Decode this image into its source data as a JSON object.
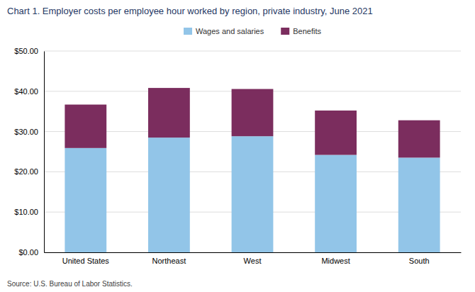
{
  "chart_data": {
    "type": "bar",
    "stacked": true,
    "title": "Chart 1. Employer costs per employee hour worked by region, private industry, June 2021",
    "categories": [
      "United States",
      "Northeast",
      "West",
      "Midwest",
      "South"
    ],
    "series": [
      {
        "name": "Wages and salaries",
        "color": "#92C5E8",
        "values": [
          25.91,
          28.5,
          28.84,
          24.2,
          23.52
        ]
      },
      {
        "name": "Benefits",
        "color": "#7B2D5E",
        "values": [
          10.79,
          12.33,
          11.73,
          11.02,
          9.28
        ]
      }
    ],
    "ylim": [
      0,
      50
    ],
    "yticks": [
      {
        "value": 0,
        "label": "$0.00"
      },
      {
        "value": 10,
        "label": "$10.00"
      },
      {
        "value": 20,
        "label": "$20.00"
      },
      {
        "value": 30,
        "label": "$30.00"
      },
      {
        "value": 40,
        "label": "$40.00"
      },
      {
        "value": 50,
        "label": "$50.00"
      }
    ],
    "grid": true,
    "legend": "top",
    "annotations": [
      "Source: U.S. Bureau of Labor Statistics."
    ]
  }
}
